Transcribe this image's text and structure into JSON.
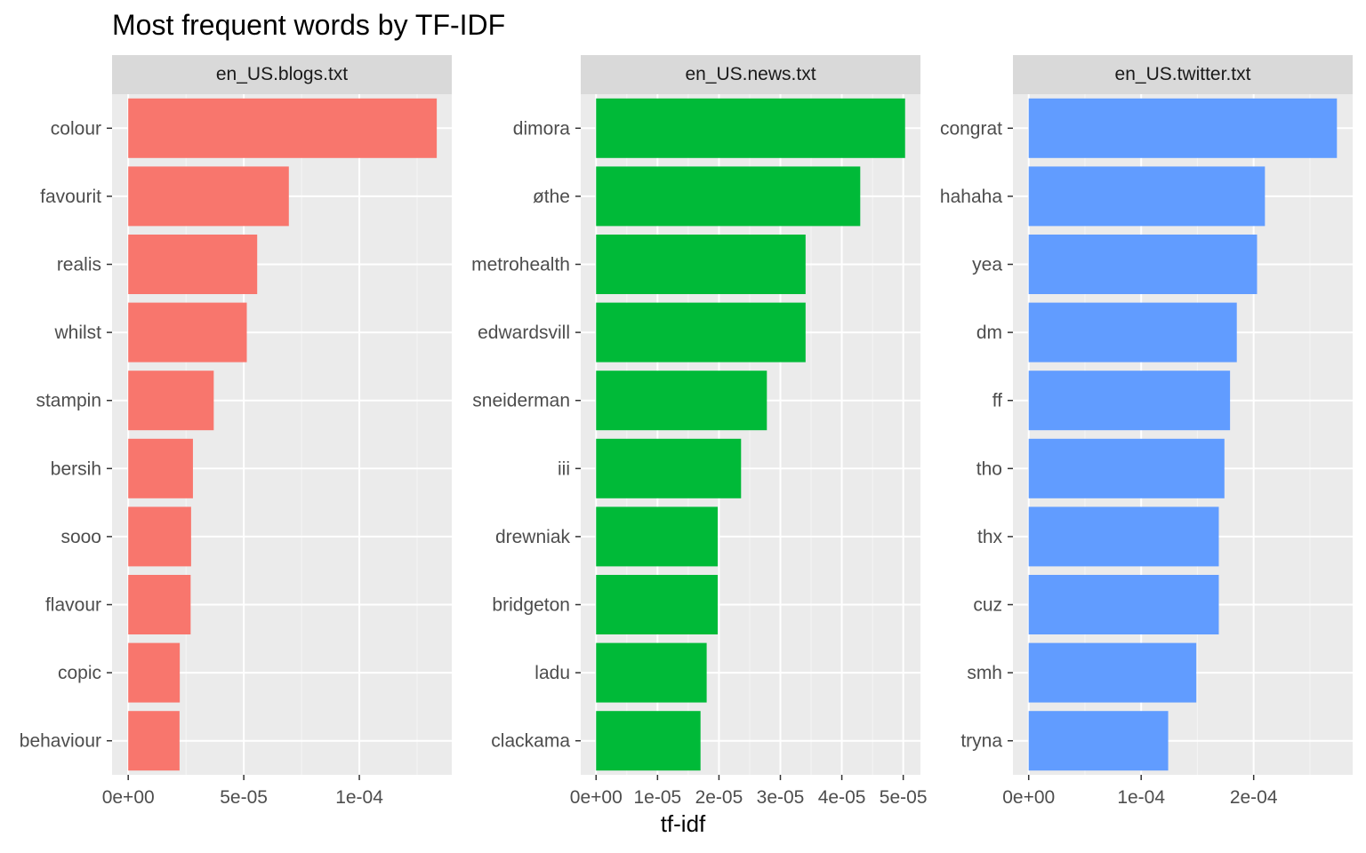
{
  "chart_data": [
    {
      "type": "bar",
      "orientation": "horizontal",
      "facet": "en_US.blogs.txt",
      "color": "#f8766d",
      "categories": [
        "colour",
        "favourit",
        "realis",
        "whilst",
        "stampin",
        "bersih",
        "sooo",
        "flavour",
        "copic",
        "behaviour"
      ],
      "values": [
        0.0001335,
        6.95e-05,
        5.58e-05,
        5.13e-05,
        3.7e-05,
        2.8e-05,
        2.72e-05,
        2.7e-05,
        2.23e-05,
        2.22e-05
      ],
      "xlim": [
        -7e-06,
        0.00014
      ],
      "ticks": [
        0,
        5e-05,
        0.0001
      ],
      "tick_labels": [
        "0e+00",
        "5e-05",
        "1e-04"
      ]
    },
    {
      "type": "bar",
      "orientation": "horizontal",
      "facet": "en_US.news.txt",
      "color": "#00ba38",
      "categories": [
        "dimora",
        "øthe",
        "metrohealth",
        "edwardsvill",
        "sneiderman",
        "iii",
        "drewniak",
        "bridgeton",
        "ladu",
        "clackama"
      ],
      "values": [
        5.03e-05,
        4.3e-05,
        3.41e-05,
        3.41e-05,
        2.78e-05,
        2.36e-05,
        1.98e-05,
        1.98e-05,
        1.8e-05,
        1.7e-05
      ],
      "xlim": [
        -2.5e-06,
        5.28e-05
      ],
      "ticks": [
        0,
        1e-05,
        2e-05,
        3e-05,
        4e-05,
        5e-05
      ],
      "tick_labels": [
        "0e+00",
        "1e-05",
        "2e-05",
        "3e-05",
        "4e-05",
        "5e-05"
      ]
    },
    {
      "type": "bar",
      "orientation": "horizontal",
      "facet": "en_US.twitter.txt",
      "color": "#619cff",
      "categories": [
        "congrat",
        "hahaha",
        "yea",
        "dm",
        "ff",
        "tho",
        "thx",
        "cuz",
        "smh",
        "tryna"
      ],
      "values": [
        0.000274,
        0.00021,
        0.000203,
        0.000185,
        0.000179,
        0.000174,
        0.000169,
        0.000169,
        0.000149,
        0.000124
      ],
      "xlim": [
        -1.4e-05,
        0.000288
      ],
      "ticks": [
        0,
        0.0001,
        0.0002
      ],
      "tick_labels": [
        "0e+00",
        "1e-04",
        "2e-04"
      ]
    }
  ],
  "title": "Most frequent words by TF-IDF",
  "xlabel": "tf-idf"
}
